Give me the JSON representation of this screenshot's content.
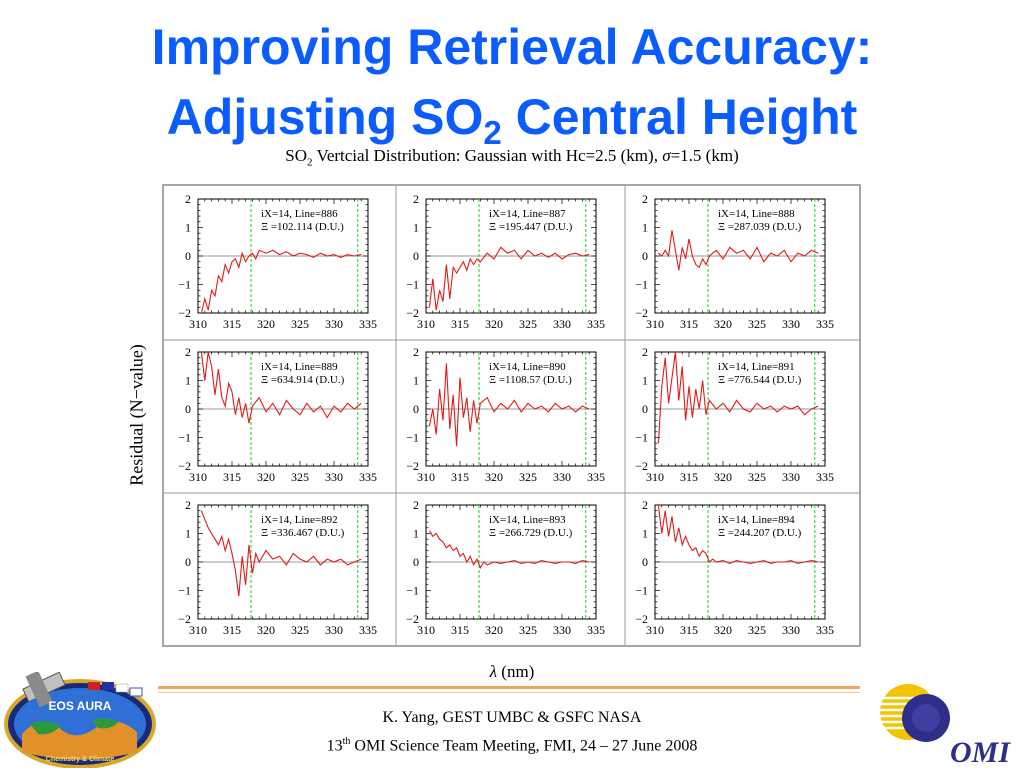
{
  "slide": {
    "title_line1": "Improving Retrieval Accuracy:",
    "title_line2_pre": "Adjusting SO",
    "title_line2_sub": "2",
    "title_line2_post": " Central Height"
  },
  "footer": {
    "line1": "K. Yang, GEST UMBC  & GSFC NASA",
    "line2_pre": "13",
    "line2_sup": "th",
    "line2_post": " OMI Science Team Meeting, FMI, 24 – 27 June 2008"
  },
  "logos": {
    "left_text": "EOS AURA",
    "left_bottom_text": "Chemistry & Climate",
    "right_text": "OMI"
  },
  "colors": {
    "title": "#0a5cff",
    "trace": "#e11b1b",
    "marker": "#22cc22",
    "rule": "#f2a65a"
  },
  "chart_data": {
    "type": "line",
    "title_pre": "SO",
    "title_sub": "2",
    "title_post": " Vertcial Distribution: Gaussian with Hc=2.5 (km), ",
    "title_sigma": "σ",
    "title_end": "=1.5 (km)",
    "xlabel_symbol": "λ",
    "xlabel": " (nm)",
    "ylabel": "Residual (N−value)",
    "xlim": [
      310,
      335
    ],
    "ylim": [
      -2,
      2
    ],
    "xticks": [
      310,
      315,
      320,
      325,
      330,
      335
    ],
    "yticks": [
      2,
      1,
      0,
      -1,
      -2
    ],
    "ytick_labels": [
      "2",
      "1",
      "0",
      "−1",
      "−2"
    ],
    "marker_lines": [
      317.8,
      333.5
    ],
    "panels": [
      {
        "line1": "iX=14, Line=886",
        "line2": "Ξ =102.114 (D.U.)",
        "x": [
          310.5,
          311,
          311.5,
          312,
          312.5,
          313,
          313.5,
          314,
          314.5,
          315,
          315.5,
          316,
          316.5,
          317,
          317.5,
          318,
          318.5,
          319,
          320,
          321,
          322,
          323,
          324,
          325,
          326,
          327,
          328,
          329,
          330,
          331,
          332,
          333,
          334
        ],
        "y": [
          -2.0,
          -1.5,
          -1.9,
          -1.2,
          -1.4,
          -0.7,
          -0.9,
          -0.3,
          -0.6,
          -0.2,
          -0.1,
          -0.4,
          0.1,
          -0.2,
          0.0,
          0.1,
          -0.1,
          0.2,
          0.1,
          0.2,
          0.05,
          0.15,
          0.0,
          0.1,
          0.05,
          -0.05,
          0.1,
          0.0,
          0.05,
          -0.05,
          0.05,
          0.0,
          0.05
        ]
      },
      {
        "line1": "iX=14, Line=887",
        "line2": "Ξ =195.447 (D.U.)",
        "x": [
          310.5,
          311,
          311.5,
          312,
          312.5,
          313,
          313.5,
          314,
          314.5,
          315,
          315.5,
          316,
          316.5,
          317,
          317.5,
          318,
          319,
          320,
          321,
          322,
          323,
          324,
          325,
          326,
          327,
          328,
          329,
          330,
          331,
          332,
          333,
          334
        ],
        "y": [
          -1.8,
          -0.8,
          -1.9,
          -1.2,
          -1.6,
          -0.3,
          -1.5,
          -0.4,
          -0.6,
          -0.4,
          -0.2,
          -0.5,
          -0.1,
          -0.3,
          -0.1,
          -0.2,
          0.1,
          -0.1,
          0.3,
          0.1,
          0.2,
          -0.1,
          0.2,
          0.0,
          0.1,
          -0.05,
          0.1,
          -0.1,
          0.05,
          0.1,
          0.0,
          0.05
        ]
      },
      {
        "line1": "iX=14, Line=888",
        "line2": "Ξ =287.039 (D.U.)",
        "x": [
          310.5,
          311,
          311.5,
          312,
          312.5,
          313,
          313.5,
          314,
          314.5,
          315,
          315.5,
          316,
          316.5,
          317,
          317.5,
          318,
          319,
          320,
          321,
          322,
          323,
          324,
          325,
          326,
          327,
          328,
          329,
          330,
          331,
          332,
          333,
          334
        ],
        "y": [
          0.1,
          0.0,
          0.2,
          0.0,
          0.9,
          0.2,
          -0.5,
          0.3,
          -0.1,
          0.6,
          0.0,
          -0.3,
          -0.4,
          -0.1,
          -0.3,
          0.0,
          0.2,
          -0.1,
          0.3,
          0.1,
          0.2,
          -0.1,
          0.3,
          -0.2,
          0.1,
          0.0,
          0.2,
          -0.2,
          0.1,
          0.0,
          0.2,
          0.1
        ]
      },
      {
        "line1": "iX=14, Line=889",
        "line2": "Ξ =634.914 (D.U.)",
        "x": [
          310.5,
          311,
          311.5,
          312,
          312.5,
          313,
          313.5,
          314,
          314.5,
          315,
          315.5,
          316,
          316.5,
          317,
          317.5,
          318,
          319,
          320,
          321,
          322,
          323,
          324,
          325,
          326,
          327,
          328,
          329,
          330,
          331,
          332,
          333,
          334
        ],
        "y": [
          2.0,
          1.0,
          2.0,
          1.5,
          0.5,
          1.4,
          0.4,
          0.1,
          0.9,
          0.6,
          -0.2,
          0.4,
          -0.3,
          0.2,
          -0.5,
          0.1,
          0.4,
          -0.1,
          0.2,
          -0.2,
          0.3,
          0.0,
          -0.2,
          0.2,
          -0.1,
          0.1,
          -0.3,
          0.1,
          -0.1,
          0.2,
          0.0,
          0.2
        ]
      },
      {
        "line1": "iX=14, Line=890",
        "line2": "Ξ =1108.57 (D.U.)",
        "x": [
          310.5,
          311,
          311.5,
          312,
          312.5,
          313,
          313.5,
          314,
          314.5,
          315,
          315.5,
          316,
          316.5,
          317,
          317.5,
          318,
          319,
          320,
          321,
          322,
          323,
          324,
          325,
          326,
          327,
          328,
          329,
          330,
          331,
          332,
          333,
          334
        ],
        "y": [
          -0.6,
          0.0,
          -0.9,
          0.7,
          -0.4,
          1.6,
          -0.7,
          0.5,
          -1.3,
          1.1,
          -0.3,
          0.4,
          -0.8,
          0.3,
          -0.5,
          0.2,
          0.4,
          -0.1,
          0.2,
          0.0,
          0.3,
          -0.1,
          0.2,
          0.0,
          0.1,
          -0.1,
          0.2,
          0.0,
          0.1,
          -0.1,
          0.1,
          0.0
        ]
      },
      {
        "line1": "iX=14, Line=891",
        "line2": "Ξ =776.544 (D.U.)",
        "x": [
          310.5,
          311,
          311.5,
          312,
          312.5,
          313,
          313.5,
          314,
          314.5,
          315,
          315.5,
          316,
          316.5,
          317,
          317.5,
          318,
          319,
          320,
          321,
          322,
          323,
          324,
          325,
          326,
          327,
          328,
          329,
          330,
          331,
          332,
          333,
          334
        ],
        "y": [
          -1.2,
          0.8,
          1.8,
          0.2,
          1.1,
          2.0,
          0.3,
          1.5,
          -0.4,
          0.8,
          -0.3,
          0.7,
          0.0,
          1.0,
          -0.2,
          0.3,
          0.0,
          0.2,
          -0.1,
          0.3,
          0.0,
          -0.1,
          0.2,
          0.0,
          0.1,
          -0.1,
          0.1,
          0.0,
          0.1,
          -0.2,
          0.0,
          0.1
        ]
      },
      {
        "line1": "iX=14, Line=892",
        "line2": "Ξ =336.467 (D.U.)",
        "x": [
          310.5,
          311,
          311.5,
          312,
          312.5,
          313,
          313.5,
          314,
          314.5,
          315,
          315.5,
          316,
          316.5,
          317,
          317.5,
          318,
          318.5,
          319,
          320,
          321,
          322,
          323,
          324,
          325,
          326,
          327,
          328,
          329,
          330,
          331,
          332,
          333,
          334
        ],
        "y": [
          1.8,
          1.5,
          1.2,
          1.0,
          0.8,
          0.6,
          0.9,
          0.4,
          0.8,
          0.3,
          -0.3,
          -1.2,
          0.2,
          -0.8,
          0.6,
          -0.4,
          0.3,
          0.0,
          0.4,
          0.1,
          0.2,
          -0.1,
          0.3,
          0.1,
          0.0,
          0.2,
          -0.1,
          0.1,
          0.0,
          0.1,
          -0.1,
          0.0,
          0.1
        ]
      },
      {
        "line1": "iX=14, Line=893",
        "line2": "Ξ =266.729 (D.U.)",
        "x": [
          310.5,
          311,
          311.5,
          312,
          312.5,
          313,
          313.5,
          314,
          314.5,
          315,
          315.5,
          316,
          316.5,
          317,
          317.5,
          318,
          318.5,
          319,
          320,
          321,
          322,
          323,
          324,
          325,
          326,
          327,
          328,
          329,
          330,
          331,
          332,
          333,
          334
        ],
        "y": [
          1.1,
          0.9,
          1.0,
          0.8,
          0.7,
          0.5,
          0.6,
          0.4,
          0.5,
          0.2,
          0.3,
          0.0,
          0.2,
          -0.1,
          0.1,
          -0.2,
          0.0,
          -0.1,
          0.0,
          -0.05,
          0.0,
          0.05,
          -0.05,
          0.0,
          -0.05,
          0.05,
          0.0,
          -0.05,
          0.0,
          0.0,
          -0.05,
          0.05,
          0.0
        ]
      },
      {
        "line1": "iX=14, Line=894",
        "line2": "Ξ =244.207 (D.U.)",
        "x": [
          310.5,
          311,
          311.5,
          312,
          312.5,
          313,
          313.5,
          314,
          314.5,
          315,
          315.5,
          316,
          316.5,
          317,
          317.5,
          318,
          318.5,
          319,
          320,
          321,
          322,
          323,
          324,
          325,
          326,
          327,
          328,
          329,
          330,
          331,
          332,
          333,
          334
        ],
        "y": [
          2.0,
          1.0,
          1.8,
          0.9,
          1.6,
          0.7,
          1.2,
          0.6,
          0.9,
          0.6,
          0.4,
          0.5,
          0.2,
          0.4,
          0.3,
          0.0,
          0.1,
          0.0,
          0.05,
          -0.05,
          0.05,
          0.0,
          -0.05,
          0.0,
          0.05,
          -0.05,
          0.0,
          0.0,
          0.05,
          -0.05,
          0.0,
          0.05,
          0.0
        ]
      }
    ]
  }
}
